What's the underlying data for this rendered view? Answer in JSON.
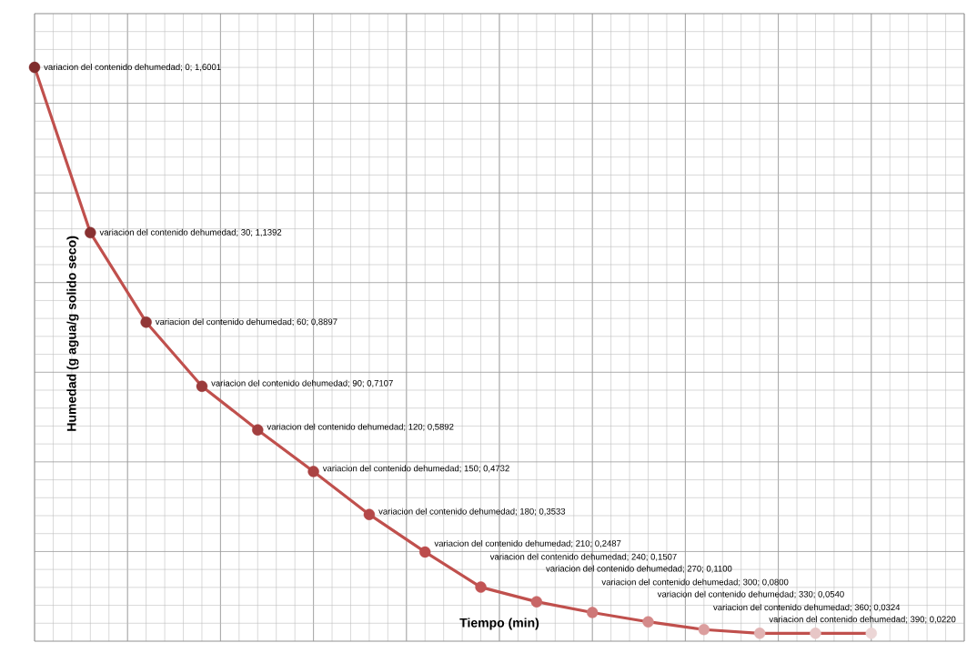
{
  "chart_data": {
    "type": "line",
    "xlabel": "Tiempo (min)",
    "ylabel": "Humedad (g agua/g solido seco)",
    "categories": [
      null,
      null,
      null,
      null,
      null,
      null,
      null,
      null,
      null,
      null,
      null,
      null,
      null,
      null,
      null,
      null
    ],
    "series": [
      {
        "color": "#c0504d",
        "colors": [
          "#7f2c2c",
          "#883131",
          "#923737",
          "#9a3b3b",
          "#a23f3f",
          "#aa4343",
          "#b44848",
          "#bc4c4c",
          "#c25454",
          "#c86666",
          "#ce7878",
          "#d48a8a",
          "#db9e9e",
          "#e1b3b3",
          "#e7c6c6",
          "#ecd6d6"
        ],
        "values": [
          1.6001,
          1.1392,
          0.8897,
          0.7107,
          0.5892,
          0.4732,
          0.3533,
          0.2487,
          0.1507,
          0.11,
          0.08,
          0.054,
          0.0324,
          0.022,
          0.022,
          0.022
        ],
        "value_labels": [
          "variacion del contenido dehumedad; 0; 1,6001",
          "variacion del contenido dehumedad; 30; 1,1392",
          "variacion del contenido dehumedad; 60; 0,8897",
          "variacion del contenido dehumedad; 90; 0,7107",
          "variacion del contenido dehumedad; 120; 0,5892",
          "variacion del contenido dehumedad; 150; 0,4732",
          "variacion del contenido dehumedad; 180; 0,3533",
          "variacion del contenido dehumedad; 210; 0,2487",
          "variacion del contenido dehumedad; 240; 0,1507",
          "variacion del contenido dehumedad; 270; 0,1100",
          "variacion del contenido dehumedad; 300; 0,0800",
          "variacion del contenido dehumedad; 330; 0,0540",
          "variacion del contenido dehumedad; 360; 0,0324",
          "variacion del contenido dehumedad; 390; 0,0220",
          null,
          null
        ]
      }
    ],
    "ylim": [
      0,
      1.75
    ],
    "yticks": [
      {
        "value": 0,
        "label": null
      },
      {
        "value": 0.25,
        "label": null
      },
      {
        "value": 0.5,
        "label": null
      },
      {
        "value": 0.75,
        "label": null
      },
      {
        "value": 1,
        "label": null
      },
      {
        "value": 1.25,
        "label": null
      },
      {
        "value": 1.5,
        "label": null
      },
      {
        "value": 1.75,
        "label": null
      }
    ],
    "grid": true,
    "marker": "circle",
    "line_style": "solid"
  }
}
